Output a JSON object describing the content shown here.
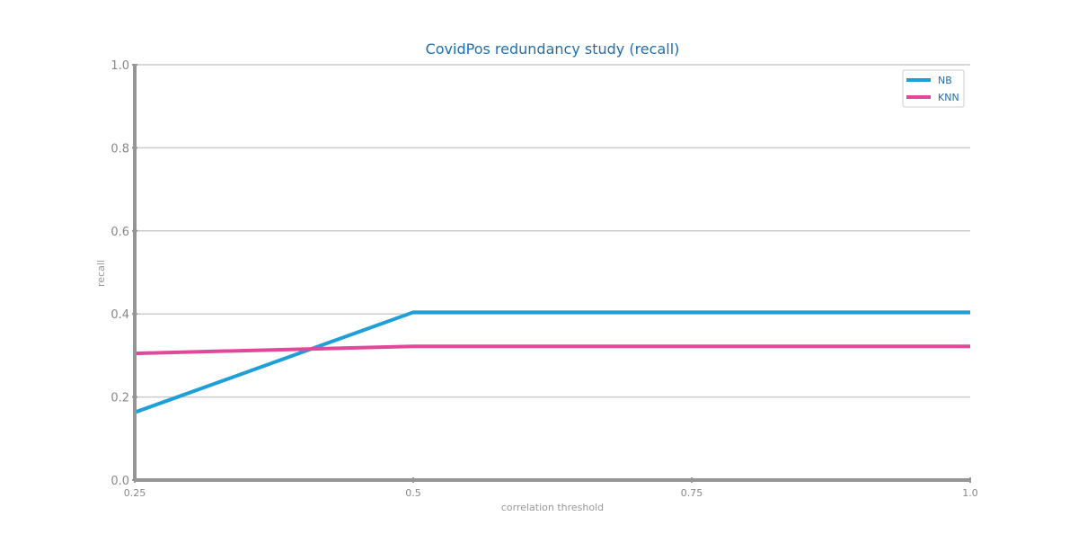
{
  "chart_data": {
    "type": "line",
    "title": "CovidPos redundancy study (recall)",
    "xlabel": "correlation threshold",
    "ylabel": "recall",
    "x": [
      0.25,
      0.5,
      0.75,
      1.0
    ],
    "xtick_labels": [
      "0.25",
      "0.5",
      "0.75",
      "1.0"
    ],
    "yticks": [
      0.0,
      0.2,
      0.4,
      0.6,
      0.8,
      1.0
    ],
    "ytick_labels": [
      "0.0",
      "0.2",
      "0.4",
      "0.6",
      "0.8",
      "1.0"
    ],
    "xlim": [
      0.25,
      1.0
    ],
    "ylim": [
      0.0,
      1.0
    ],
    "grid": "horizontal",
    "legend_position": "top-right",
    "series": [
      {
        "name": "NB",
        "color": "#1f9fd8",
        "values": [
          0.163,
          0.404,
          0.404,
          0.404
        ]
      },
      {
        "name": "KNN",
        "color": "#e2489a",
        "values": [
          0.305,
          0.322,
          0.322,
          0.322
        ]
      }
    ],
    "colors": {
      "title": "#1f6fae",
      "axis": "#959595",
      "grid": "#cccccc",
      "tick_text": "#888888",
      "legend_text": "#1f6fae"
    }
  }
}
